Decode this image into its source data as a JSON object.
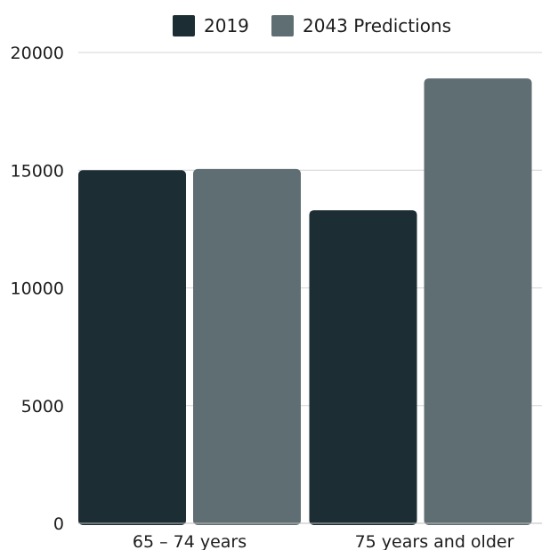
{
  "chart_data": {
    "type": "bar",
    "categories": [
      "65 – 74 years",
      "75 years and older"
    ],
    "series": [
      {
        "name": "2019",
        "values": [
          15000,
          13300
        ],
        "color": "#1c2d33"
      },
      {
        "name": "2043 Predictions",
        "values": [
          15050,
          18900
        ],
        "color": "#5f6e72"
      }
    ],
    "ylim": [
      0,
      20000
    ],
    "yticks": [
      "0",
      "5000",
      "10000",
      "15000",
      "20000"
    ],
    "grid": true,
    "legend": "top-center"
  }
}
